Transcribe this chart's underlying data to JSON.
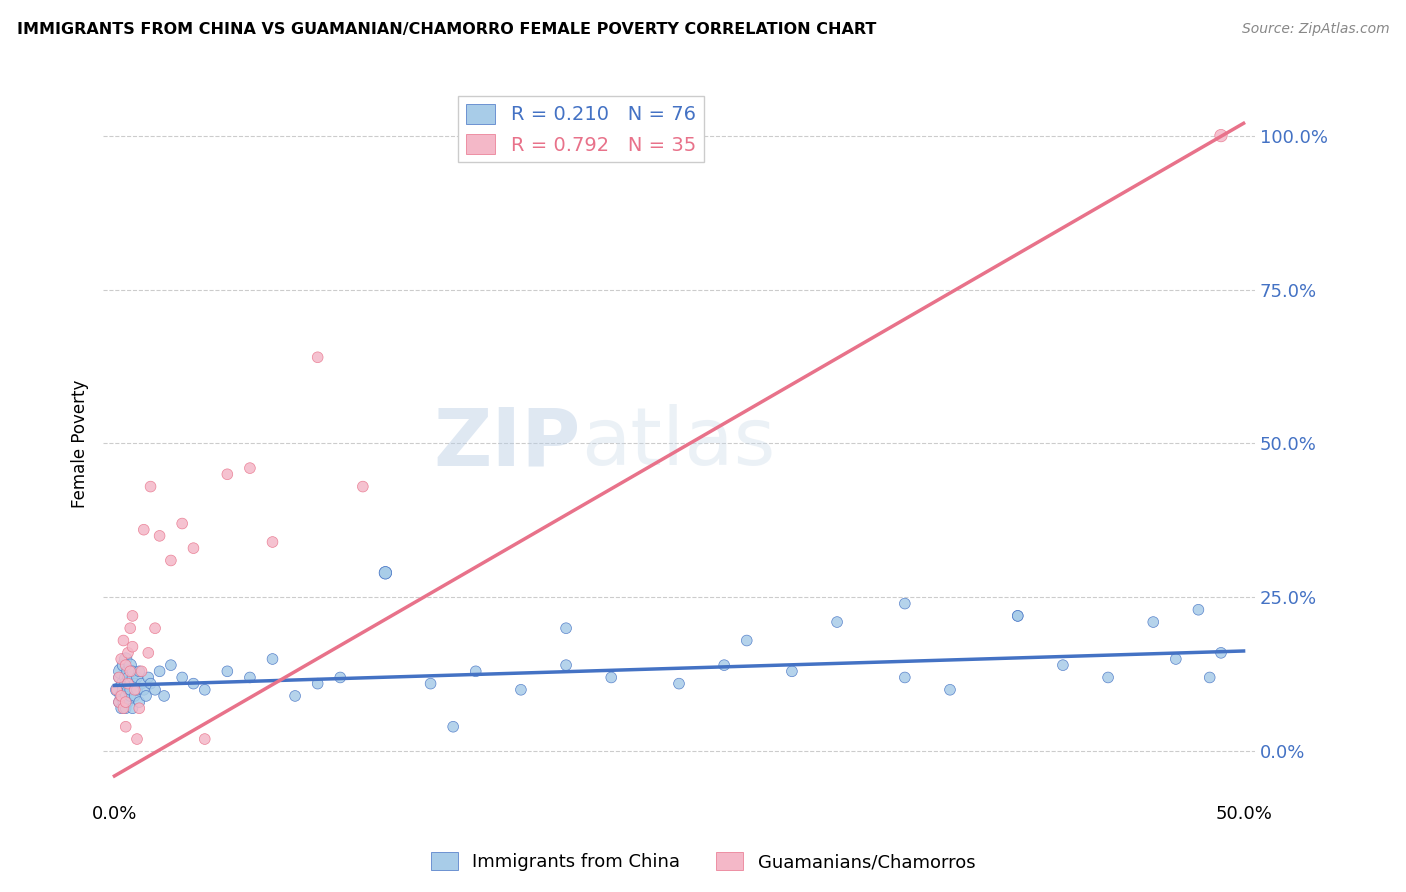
{
  "title": "IMMIGRANTS FROM CHINA VS GUAMANIAN/CHAMORRO FEMALE POVERTY CORRELATION CHART",
  "source": "Source: ZipAtlas.com",
  "ylabel_label": "Female Poverty",
  "y_tick_labels": [
    "0.0%",
    "25.0%",
    "50.0%",
    "75.0%",
    "100.0%"
  ],
  "y_tick_values": [
    0.0,
    0.25,
    0.5,
    0.75,
    1.0
  ],
  "x_tick_labels": [
    "0.0%",
    "50.0%"
  ],
  "x_tick_values": [
    0.0,
    0.5
  ],
  "xlim": [
    -0.005,
    0.505
  ],
  "ylim": [
    -0.08,
    1.08
  ],
  "blue_R": 0.21,
  "blue_N": 76,
  "pink_R": 0.792,
  "pink_N": 35,
  "legend_label_blue": "Immigrants from China",
  "legend_label_pink": "Guamanians/Chamorros",
  "blue_color": "#a8cce8",
  "pink_color": "#f4b8c8",
  "blue_line_color": "#4472c4",
  "pink_line_color": "#e8728a",
  "watermark_zip": "ZIP",
  "watermark_atlas": "atlas",
  "background_color": "#ffffff",
  "grid_color": "#cccccc",
  "blue_x": [
    0.001,
    0.002,
    0.002,
    0.003,
    0.003,
    0.003,
    0.004,
    0.004,
    0.004,
    0.004,
    0.005,
    0.005,
    0.005,
    0.005,
    0.005,
    0.006,
    0.006,
    0.006,
    0.006,
    0.007,
    0.007,
    0.007,
    0.007,
    0.008,
    0.008,
    0.008,
    0.009,
    0.009,
    0.01,
    0.01,
    0.011,
    0.011,
    0.012,
    0.013,
    0.014,
    0.015,
    0.016,
    0.018,
    0.02,
    0.022,
    0.025,
    0.03,
    0.035,
    0.04,
    0.05,
    0.06,
    0.07,
    0.08,
    0.09,
    0.1,
    0.12,
    0.14,
    0.16,
    0.18,
    0.2,
    0.22,
    0.25,
    0.27,
    0.3,
    0.32,
    0.35,
    0.37,
    0.4,
    0.42,
    0.44,
    0.46,
    0.47,
    0.48,
    0.485,
    0.49,
    0.12,
    0.15,
    0.2,
    0.28,
    0.35,
    0.4
  ],
  "blue_y": [
    0.1,
    0.12,
    0.08,
    0.13,
    0.09,
    0.07,
    0.11,
    0.14,
    0.08,
    0.1,
    0.12,
    0.09,
    0.15,
    0.07,
    0.11,
    0.1,
    0.13,
    0.08,
    0.12,
    0.11,
    0.09,
    0.14,
    0.1,
    0.12,
    0.07,
    0.13,
    0.11,
    0.09,
    0.12,
    0.1,
    0.13,
    0.08,
    0.11,
    0.1,
    0.09,
    0.12,
    0.11,
    0.1,
    0.13,
    0.09,
    0.14,
    0.12,
    0.11,
    0.1,
    0.13,
    0.12,
    0.15,
    0.09,
    0.11,
    0.12,
    0.29,
    0.11,
    0.13,
    0.1,
    0.14,
    0.12,
    0.11,
    0.14,
    0.13,
    0.21,
    0.12,
    0.1,
    0.22,
    0.14,
    0.12,
    0.21,
    0.15,
    0.23,
    0.12,
    0.16,
    0.29,
    0.04,
    0.2,
    0.18,
    0.24,
    0.22
  ],
  "blue_size": [
    80,
    60,
    60,
    120,
    80,
    60,
    100,
    80,
    60,
    80,
    80,
    60,
    80,
    60,
    80,
    60,
    80,
    60,
    60,
    60,
    60,
    80,
    60,
    60,
    60,
    60,
    60,
    60,
    60,
    60,
    60,
    60,
    60,
    60,
    60,
    60,
    60,
    60,
    60,
    60,
    60,
    60,
    60,
    60,
    60,
    60,
    60,
    60,
    60,
    60,
    80,
    60,
    60,
    60,
    60,
    60,
    60,
    60,
    60,
    60,
    60,
    60,
    60,
    60,
    60,
    60,
    60,
    60,
    60,
    60,
    80,
    60,
    60,
    60,
    60,
    60
  ],
  "pink_x": [
    0.001,
    0.002,
    0.002,
    0.003,
    0.003,
    0.004,
    0.004,
    0.005,
    0.005,
    0.005,
    0.006,
    0.006,
    0.007,
    0.007,
    0.008,
    0.008,
    0.009,
    0.01,
    0.011,
    0.012,
    0.013,
    0.015,
    0.016,
    0.018,
    0.02,
    0.025,
    0.03,
    0.035,
    0.04,
    0.05,
    0.06,
    0.07,
    0.09,
    0.11,
    0.49
  ],
  "pink_y": [
    0.1,
    0.12,
    0.08,
    0.15,
    0.09,
    0.18,
    0.07,
    0.14,
    0.08,
    0.04,
    0.16,
    0.11,
    0.2,
    0.13,
    0.22,
    0.17,
    0.1,
    0.02,
    0.07,
    0.13,
    0.36,
    0.16,
    0.43,
    0.2,
    0.35,
    0.31,
    0.37,
    0.33,
    0.02,
    0.45,
    0.46,
    0.34,
    0.64,
    0.43,
    1.0
  ],
  "pink_size": [
    60,
    60,
    60,
    60,
    60,
    60,
    60,
    60,
    60,
    60,
    60,
    60,
    60,
    60,
    60,
    60,
    60,
    60,
    60,
    60,
    60,
    60,
    60,
    60,
    60,
    60,
    60,
    60,
    60,
    60,
    60,
    60,
    60,
    60,
    80
  ],
  "blue_trend_x": [
    0.0,
    0.5
  ],
  "blue_trend_y": [
    0.107,
    0.163
  ],
  "pink_trend_x": [
    0.0,
    0.5
  ],
  "pink_trend_y": [
    -0.04,
    1.02
  ]
}
